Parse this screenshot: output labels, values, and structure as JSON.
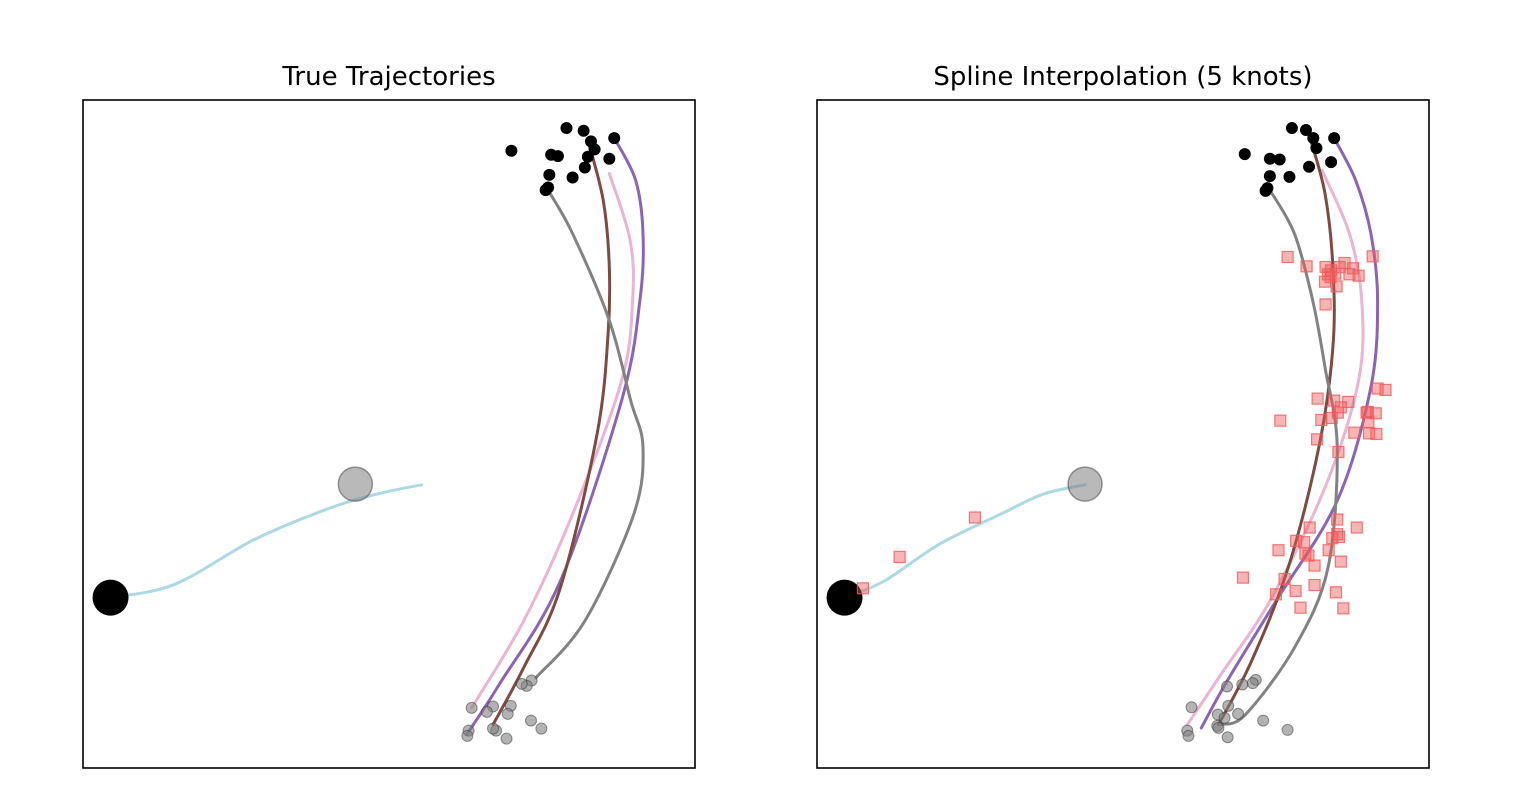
{
  "colors": {
    "cyan_traj": "#add8e6",
    "purple_traj": "#8c64b4",
    "pink_traj": "#ebb4d2",
    "brown_traj": "#7d4b41",
    "gray_traj": "#828282",
    "start_marker": "#000000",
    "end_marker": "#808080",
    "knot_marker": "#f05a5a"
  },
  "chart_data": [
    {
      "type": "line",
      "title": "True Trajectories",
      "xlabel": "",
      "ylabel": "",
      "xlim": [
        0,
        100
      ],
      "ylim": [
        0,
        100
      ],
      "grid": false,
      "ticks": false,
      "series": [
        {
          "color_key": "cyan_traj",
          "points": [
            [
              55.3,
              42.4
            ],
            [
              48.0,
              41.0
            ],
            [
              40.0,
              38.8
            ],
            [
              28.0,
              34.2
            ],
            [
              15.0,
              27.5
            ],
            [
              4.5,
              25.5
            ]
          ]
        },
        {
          "color_key": "purple_traj",
          "points": [
            [
              86.8,
              94.3
            ],
            [
              90.3,
              88.0
            ],
            [
              91.5,
              80.0
            ],
            [
              91.0,
              70.0
            ],
            [
              88.0,
              55.0
            ],
            [
              78.0,
              28.0
            ],
            [
              68.0,
              12.5
            ],
            [
              62.7,
              5.0
            ]
          ]
        },
        {
          "color_key": "pink_traj",
          "points": [
            [
              86.0,
              89.0
            ],
            [
              89.4,
              79.0
            ],
            [
              89.8,
              70.0
            ],
            [
              88.0,
              58.0
            ],
            [
              80.0,
              38.0
            ],
            [
              72.0,
              22.0
            ],
            [
              63.5,
              9.0
            ]
          ]
        },
        {
          "color_key": "brown_traj",
          "points": [
            [
              82.5,
              94.0
            ],
            [
              85.0,
              85.0
            ],
            [
              86.0,
              75.0
            ],
            [
              85.8,
              65.0
            ],
            [
              84.0,
              50.0
            ],
            [
              78.0,
              27.0
            ],
            [
              72.0,
              15.0
            ],
            [
              67.0,
              6.5
            ]
          ]
        },
        {
          "color_key": "gray_traj",
          "points": [
            [
              76.0,
              86.5
            ],
            [
              80.0,
              80.0
            ],
            [
              86.0,
              67.0
            ],
            [
              89.5,
              55.0
            ],
            [
              91.5,
              48.0
            ],
            [
              90.0,
              38.0
            ],
            [
              82.0,
              22.0
            ],
            [
              74.0,
              13.5
            ]
          ]
        }
      ],
      "start_points": [
        [
          4.5,
          25.5
        ]
      ],
      "end_points_large": [
        [
          44.5,
          42.5
        ]
      ],
      "cluster_top": [
        [
          79.0,
          95.8
        ],
        [
          81.8,
          95.4
        ],
        [
          86.8,
          94.3
        ],
        [
          83.0,
          93.8
        ],
        [
          83.6,
          92.6
        ],
        [
          70.0,
          92.4
        ],
        [
          76.5,
          91.8
        ],
        [
          77.6,
          91.6
        ],
        [
          82.5,
          91.5
        ],
        [
          86.0,
          91.2
        ],
        [
          82.0,
          89.9
        ],
        [
          76.2,
          88.8
        ],
        [
          80.0,
          88.4
        ],
        [
          76.0,
          86.9
        ],
        [
          75.6,
          86.5
        ]
      ],
      "cluster_bottom": [
        [
          73.3,
          13.1
        ],
        [
          72.5,
          12.3
        ],
        [
          71.7,
          12.6
        ],
        [
          63.5,
          9.0
        ],
        [
          69.9,
          9.3
        ],
        [
          67.0,
          9.2
        ],
        [
          66.0,
          8.4
        ],
        [
          69.4,
          8.1
        ],
        [
          73.2,
          7.1
        ],
        [
          74.9,
          5.9
        ],
        [
          63.0,
          5.6
        ],
        [
          67.5,
          5.6
        ],
        [
          67.0,
          5.9
        ],
        [
          62.8,
          4.8
        ],
        [
          69.2,
          4.4
        ]
      ]
    },
    {
      "type": "line",
      "title": "Spline Interpolation (5 knots)",
      "xlabel": "",
      "ylabel": "",
      "xlim": [
        0,
        100
      ],
      "ylim": [
        0,
        100
      ],
      "grid": false,
      "ticks": false,
      "series": [
        {
          "color_key": "cyan_traj",
          "points": [
            [
              43.8,
              42.4
            ],
            [
              37.0,
              41.0
            ],
            [
              30.0,
              38.0
            ],
            [
              20.0,
              33.5
            ],
            [
              11.0,
              28.0
            ],
            [
              4.5,
              25.5
            ]
          ]
        },
        {
          "color_key": "purple_traj",
          "points": [
            [
              84.5,
              94.3
            ],
            [
              88.0,
              88.0
            ],
            [
              90.5,
              80.0
            ],
            [
              91.6,
              70.0
            ],
            [
              90.5,
              57.0
            ],
            [
              85.0,
              40.0
            ],
            [
              75.0,
              25.0
            ],
            [
              67.0,
              13.0
            ],
            [
              62.8,
              6.0
            ]
          ]
        },
        {
          "color_key": "pink_traj",
          "points": [
            [
              82.5,
              89.5
            ],
            [
              87.0,
              80.0
            ],
            [
              89.0,
              70.0
            ],
            [
              88.5,
              58.0
            ],
            [
              83.0,
              42.0
            ],
            [
              74.0,
              25.0
            ],
            [
              66.0,
              14.0
            ],
            [
              60.5,
              6.5
            ]
          ]
        },
        {
          "color_key": "brown_traj",
          "points": [
            [
              80.5,
              94.5
            ],
            [
              83.0,
              86.0
            ],
            [
              84.3,
              75.0
            ],
            [
              84.3,
              63.0
            ],
            [
              82.0,
              48.0
            ],
            [
              77.0,
              30.0
            ],
            [
              71.0,
              16.0
            ],
            [
              65.6,
              6.5
            ]
          ]
        },
        {
          "color_key": "gray_traj",
          "points": [
            [
              74.0,
              86.5
            ],
            [
              78.0,
              80.0
            ],
            [
              81.0,
              70.0
            ],
            [
              83.0,
              60.0
            ],
            [
              85.0,
              48.0
            ],
            [
              83.5,
              30.0
            ],
            [
              78.0,
              18.0
            ],
            [
              70.0,
              8.0
            ],
            [
              66.0,
              6.5
            ]
          ]
        }
      ],
      "start_points": [
        [
          4.5,
          25.5
        ]
      ],
      "end_points_large": [
        [
          43.8,
          42.5
        ]
      ],
      "cluster_top": [
        [
          77.6,
          95.8
        ],
        [
          79.9,
          95.5
        ],
        [
          81.1,
          94.3
        ],
        [
          84.5,
          94.3
        ],
        [
          81.6,
          92.8
        ],
        [
          69.9,
          91.9
        ],
        [
          74.0,
          91.2
        ],
        [
          75.6,
          91.1
        ],
        [
          84.0,
          90.7
        ],
        [
          80.4,
          90.0
        ],
        [
          77.2,
          88.5
        ],
        [
          74.0,
          88.6
        ],
        [
          73.6,
          86.8
        ],
        [
          73.3,
          86.4
        ]
      ],
      "cluster_bottom": [
        [
          71.7,
          13.2
        ],
        [
          71.2,
          12.7
        ],
        [
          69.5,
          12.5
        ],
        [
          67.0,
          12.2
        ],
        [
          61.2,
          9.1
        ],
        [
          67.2,
          9.3
        ],
        [
          68.8,
          8.1
        ],
        [
          65.5,
          8.0
        ],
        [
          66.6,
          7.5
        ],
        [
          72.9,
          7.1
        ],
        [
          65.4,
          6.3
        ],
        [
          65.6,
          6.0
        ],
        [
          60.5,
          5.6
        ],
        [
          76.9,
          5.7
        ],
        [
          60.7,
          4.8
        ],
        [
          67.1,
          4.6
        ]
      ],
      "knots": [
        [
          76.9,
          76.5
        ],
        [
          80.0,
          75.1
        ],
        [
          83.1,
          75.0
        ],
        [
          84.0,
          74.5
        ],
        [
          85.4,
          75.0
        ],
        [
          87.6,
          74.8
        ],
        [
          86.2,
          75.6
        ],
        [
          84.7,
          74.0
        ],
        [
          83.5,
          73.9
        ],
        [
          88.5,
          73.7
        ],
        [
          83.9,
          73.5
        ],
        [
          87.0,
          73.9
        ],
        [
          83.0,
          72.8
        ],
        [
          84.9,
          72.1
        ],
        [
          90.8,
          76.6
        ],
        [
          83.1,
          69.4
        ],
        [
          81.8,
          55.3
        ],
        [
          84.5,
          55.0
        ],
        [
          85.6,
          54.0
        ],
        [
          86.8,
          54.8
        ],
        [
          89.8,
          53.2
        ],
        [
          82.4,
          52.1
        ],
        [
          84.1,
          52.4
        ],
        [
          75.7,
          52.0
        ],
        [
          90.0,
          53.3
        ],
        [
          91.6,
          56.8
        ],
        [
          90.1,
          51.8
        ],
        [
          91.3,
          53.1
        ],
        [
          92.9,
          56.6
        ],
        [
          85.1,
          53.2
        ],
        [
          81.7,
          49.2
        ],
        [
          85.2,
          47.3
        ],
        [
          90.2,
          50.1
        ],
        [
          91.4,
          50.0
        ],
        [
          87.8,
          50.2
        ],
        [
          85.0,
          35.0
        ],
        [
          88.2,
          36.0
        ],
        [
          85.0,
          37.2
        ],
        [
          80.5,
          36.0
        ],
        [
          85.3,
          34.6
        ],
        [
          84.2,
          34.4
        ],
        [
          78.3,
          34.0
        ],
        [
          79.6,
          33.8
        ],
        [
          75.4,
          32.6
        ],
        [
          79.8,
          32.1
        ],
        [
          83.6,
          32.6
        ],
        [
          80.3,
          31.8
        ],
        [
          85.6,
          30.9
        ],
        [
          81.3,
          30.3
        ],
        [
          69.6,
          28.5
        ],
        [
          76.4,
          28.3
        ],
        [
          81.3,
          27.4
        ],
        [
          84.8,
          26.3
        ],
        [
          78.2,
          26.5
        ],
        [
          79.0,
          24.0
        ],
        [
          86.0,
          23.9
        ],
        [
          75.0,
          26.0
        ],
        [
          7.5,
          26.9
        ],
        [
          13.5,
          31.6
        ],
        [
          25.8,
          37.5
        ]
      ]
    }
  ]
}
